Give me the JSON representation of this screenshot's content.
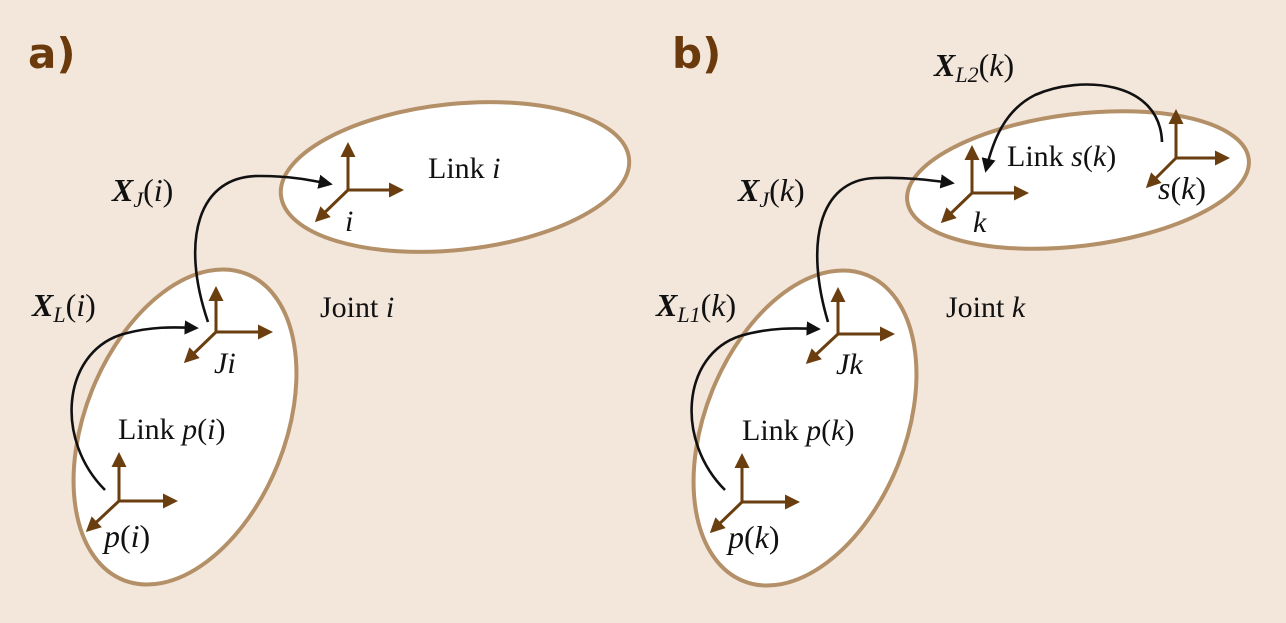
{
  "panel_a": {
    "label": "a)",
    "link_i": {
      "prefix": "Link ",
      "var": "i"
    },
    "joint": {
      "prefix": "Joint ",
      "var": "i"
    },
    "link_p": {
      "prefix": "Link ",
      "var": "p",
      "open": "(",
      "arg": "i",
      "close": ")"
    },
    "frame_i": "i",
    "frame_ji": "Ji",
    "frame_p": {
      "var": "p",
      "open": "(",
      "arg": "i",
      "close": ")"
    },
    "xj": {
      "sym": "X",
      "sub": "J",
      "open": "(",
      "arg": "i",
      "close": ")"
    },
    "xl": {
      "sym": "X",
      "sub": "L",
      "open": "(",
      "arg": "i",
      "close": ")"
    }
  },
  "panel_b": {
    "label": "b)",
    "link_s": {
      "prefix": "Link ",
      "var": "s",
      "open": "(",
      "arg": "k",
      "close": ")"
    },
    "joint": {
      "prefix": "Joint ",
      "var": "k"
    },
    "link_p": {
      "prefix": "Link ",
      "var": "p",
      "open": "(",
      "arg": "k",
      "close": ")"
    },
    "frame_k": "k",
    "frame_jk": "Jk",
    "frame_s": {
      "var": "s",
      "open": "(",
      "arg": "k",
      "close": ")"
    },
    "frame_p": {
      "var": "p",
      "open": "(",
      "arg": "k",
      "close": ")"
    },
    "xj": {
      "sym": "X",
      "sub": "J",
      "open": "(",
      "arg": "k",
      "close": ")"
    },
    "xl1": {
      "sym": "X",
      "sub": "L1",
      "open": "(",
      "arg": "k",
      "close": ")"
    },
    "xl2": {
      "sym": "X",
      "sub": "L2",
      "open": "(",
      "arg": "k",
      "close": ")"
    }
  },
  "colors": {
    "background": "#f3e6db",
    "link_outline": "#b49068",
    "axis": "#6b3e10",
    "panel_label": "#6b3a0c"
  }
}
